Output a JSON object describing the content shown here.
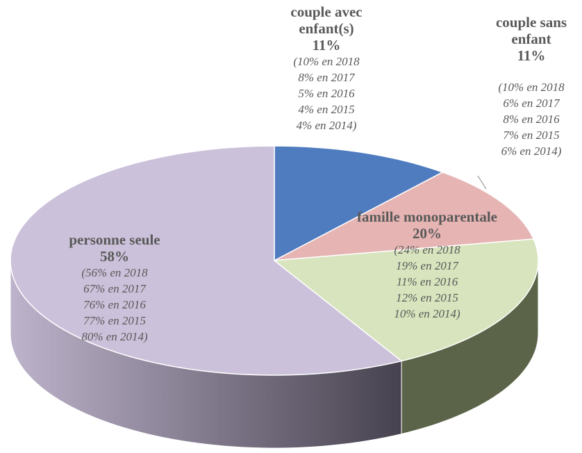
{
  "chart_data": {
    "type": "pie3d",
    "categories": [
      "couple avec enfant(s)",
      "couple sans enfant",
      "famille monoparentale",
      "personne seule"
    ],
    "values": [
      11,
      11,
      20,
      58
    ],
    "value_labels": [
      "11%",
      "11%",
      "20%",
      "58%"
    ],
    "notes": [
      [
        "(10% en 2018",
        "8% en 2017",
        "5% en 2016",
        "4% en 2015",
        "4% en 2014)"
      ],
      [
        "(10% en 2018",
        "6% en 2017",
        "8% en 2016",
        "7% en 2015",
        "6% en 2014)"
      ],
      [
        "(24% en 2018",
        "19% en 2017",
        "11% en 2016",
        "12% en 2015",
        "10% en 2014)"
      ],
      [
        "(56% en 2018",
        "67% en 2017",
        "76% en 2016",
        "77% en 2015",
        "80% en 2014)"
      ]
    ],
    "colors": [
      "#4f7bbf",
      "#e6b5b3",
      "#d7e4bd",
      "#ccc1da"
    ],
    "side_colors": [
      "#2f4f80",
      "#9a6e6c",
      "#5b6448",
      "url(#gPurple)"
    ]
  }
}
